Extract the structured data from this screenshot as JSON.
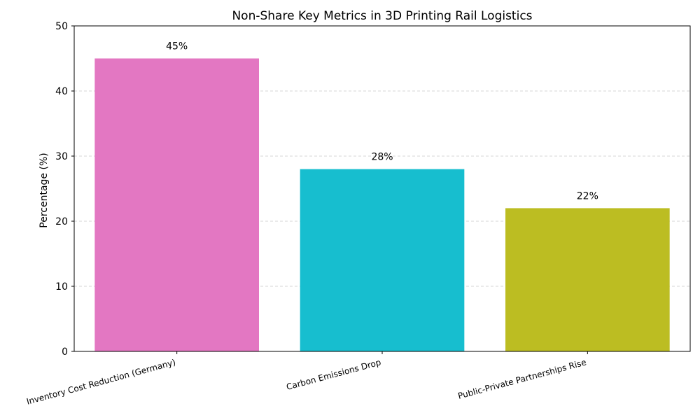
{
  "chart_data": {
    "type": "bar",
    "title": "Non-Share Key Metrics in 3D Printing Rail Logistics",
    "xlabel": "",
    "ylabel": "Percentage (%)",
    "categories": [
      "Inventory Cost Reduction (Germany)",
      "Carbon Emissions Drop",
      "Public-Private Partnerships Rise"
    ],
    "values": [
      45,
      28,
      22
    ],
    "data_labels": [
      "45%",
      "28%",
      "22%"
    ],
    "colors": [
      "#e377c2",
      "#17becf",
      "#bcbd22"
    ],
    "ylim": [
      0,
      50
    ],
    "yticks": [
      0,
      10,
      20,
      30,
      40,
      50
    ],
    "grid": true
  }
}
